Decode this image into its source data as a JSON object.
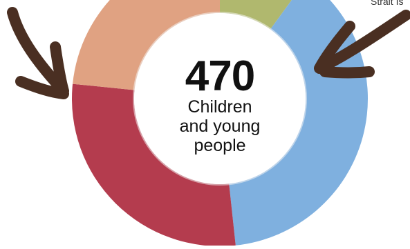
{
  "chart_data": {
    "type": "pie",
    "subtype": "donut",
    "center_total": "470",
    "center_label": "Children\nand young\npeople",
    "partial_label": "Strait Is",
    "slices": [
      {
        "value": 47,
        "color": "#b0b86e"
      },
      {
        "value": 180,
        "color": "#7fb0df"
      },
      {
        "value": 133,
        "color": "#b43c4e"
      },
      {
        "value": 110,
        "color": "#e0a282"
      }
    ],
    "annotations": [
      {
        "kind": "hand-drawn-arrow",
        "color": "#4a2f22"
      },
      {
        "kind": "hand-drawn-arrow",
        "color": "#4a2f22"
      }
    ]
  }
}
